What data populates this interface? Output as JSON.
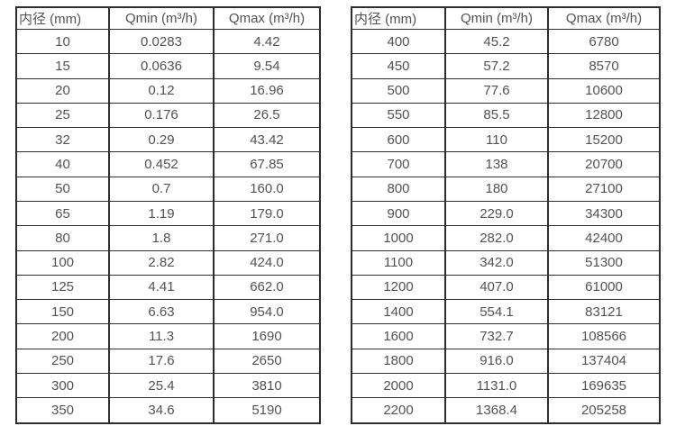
{
  "colors": {
    "background": "#ffffff",
    "table_border": "#2e2e2e",
    "text": "#525252"
  },
  "tables": [
    {
      "name": "flow-spec-small-diameters",
      "headers": [
        "内径 (mm)",
        "Qmin (m³/h)",
        "Qmax (m³/h)"
      ],
      "rows": [
        [
          "10",
          "0.0283",
          "4.42"
        ],
        [
          "15",
          "0.0636",
          "9.54"
        ],
        [
          "20",
          "0.12",
          "16.96"
        ],
        [
          "25",
          "0.176",
          "26.5"
        ],
        [
          "32",
          "0.29",
          "43.42"
        ],
        [
          "40",
          "0.452",
          "67.85"
        ],
        [
          "50",
          "0.7",
          "160.0"
        ],
        [
          "65",
          "1.19",
          "179.0"
        ],
        [
          "80",
          "1.8",
          "271.0"
        ],
        [
          "100",
          "2.82",
          "424.0"
        ],
        [
          "125",
          "4.41",
          "662.0"
        ],
        [
          "150",
          "6.63",
          "954.0"
        ],
        [
          "200",
          "11.3",
          "1690"
        ],
        [
          "250",
          "17.6",
          "2650"
        ],
        [
          "300",
          "25.4",
          "3810"
        ],
        [
          "350",
          "34.6",
          "5190"
        ]
      ]
    },
    {
      "name": "flow-spec-large-diameters",
      "headers": [
        "内径 (mm)",
        "Qmin (m³/h)",
        "Qmax (m³/h)"
      ],
      "rows": [
        [
          "400",
          "45.2",
          "6780"
        ],
        [
          "450",
          "57.2",
          "8570"
        ],
        [
          "500",
          "77.6",
          "10600"
        ],
        [
          "550",
          "85.5",
          "12800"
        ],
        [
          "600",
          "110",
          "15200"
        ],
        [
          "700",
          "138",
          "20700"
        ],
        [
          "800",
          "180",
          "27100"
        ],
        [
          "900",
          "229.0",
          "34300"
        ],
        [
          "1000",
          "282.0",
          "42400"
        ],
        [
          "1100",
          "342.0",
          "51300"
        ],
        [
          "1200",
          "407.0",
          "61000"
        ],
        [
          "1400",
          "554.1",
          "83121"
        ],
        [
          "1600",
          "732.7",
          "108566"
        ],
        [
          "1800",
          "916.0",
          "137404"
        ],
        [
          "2000",
          "1131.0",
          "169635"
        ],
        [
          "2200",
          "1368.4",
          "205258"
        ]
      ]
    }
  ]
}
